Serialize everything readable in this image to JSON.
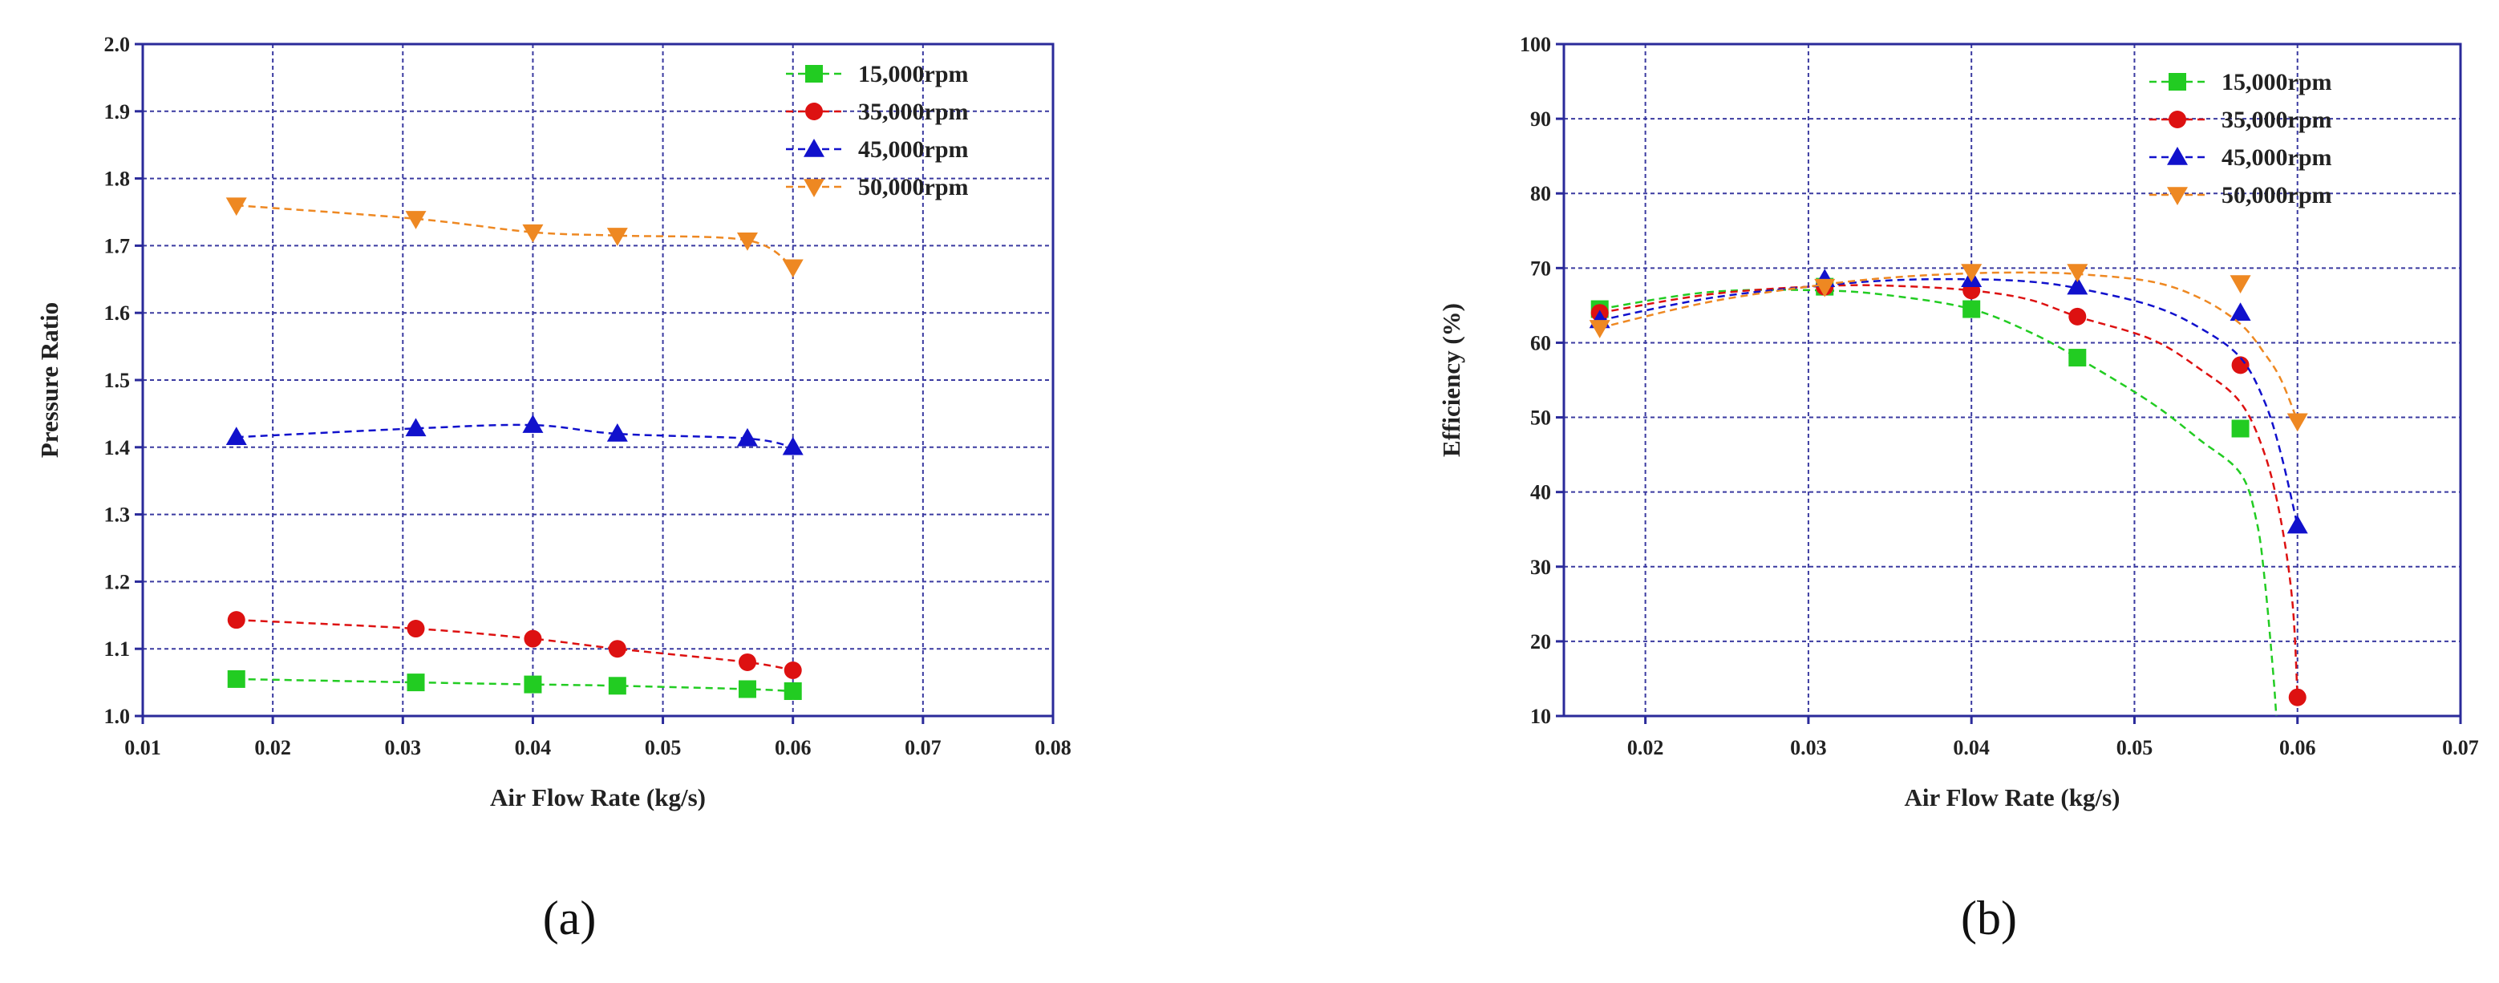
{
  "chart_data": [
    {
      "type": "line",
      "panel_label": "(a)",
      "title": "",
      "xlabel": "Air Flow Rate (kg/s)",
      "ylabel": "Pressure Ratio",
      "xlim": [
        0.01,
        0.08
      ],
      "ylim": [
        1.0,
        2.0
      ],
      "x_ticks": [
        0.01,
        0.02,
        0.03,
        0.04,
        0.05,
        0.06,
        0.07,
        0.08
      ],
      "y_ticks": [
        1.0,
        1.1,
        1.2,
        1.3,
        1.4,
        1.5,
        1.6,
        1.7,
        1.8,
        1.9,
        2.0
      ],
      "x_tick_labels": [
        "0.01",
        "0.02",
        "0.03",
        "0.04",
        "0.05",
        "0.06",
        "0.07",
        "0.08"
      ],
      "y_tick_labels": [
        "1.0",
        "1.1",
        "1.2",
        "1.3",
        "1.4",
        "1.5",
        "1.6",
        "1.7",
        "1.8",
        "1.9",
        "2.0"
      ],
      "grid": true,
      "legend_position": "top-right",
      "series": [
        {
          "name": "15,000rpm",
          "marker": "square",
          "x": [
            0.0172,
            0.031,
            0.04,
            0.0465,
            0.0565,
            0.06
          ],
          "y": [
            1.055,
            1.05,
            1.047,
            1.045,
            1.04,
            1.037
          ]
        },
        {
          "name": "35,000rpm",
          "marker": "circle",
          "x": [
            0.0172,
            0.031,
            0.04,
            0.0465,
            0.0565,
            0.06
          ],
          "y": [
            1.143,
            1.13,
            1.115,
            1.1,
            1.08,
            1.068
          ]
        },
        {
          "name": "45,000rpm",
          "marker": "triangle-up",
          "x": [
            0.0172,
            0.031,
            0.04,
            0.0465,
            0.0565,
            0.06
          ],
          "y": [
            1.415,
            1.428,
            1.433,
            1.42,
            1.413,
            1.4
          ]
        },
        {
          "name": "50,000rpm",
          "marker": "triangle-down",
          "x": [
            0.0172,
            0.031,
            0.04,
            0.0465,
            0.0565,
            0.06
          ],
          "y": [
            1.76,
            1.74,
            1.72,
            1.715,
            1.708,
            1.668
          ]
        }
      ]
    },
    {
      "type": "line",
      "panel_label": "(b)",
      "title": "",
      "xlabel": "Air Flow Rate (kg/s)",
      "ylabel": "Efficiency (%)",
      "xlim": [
        0.015,
        0.07
      ],
      "ylim": [
        10,
        100
      ],
      "x_ticks": [
        0.02,
        0.03,
        0.04,
        0.05,
        0.06,
        0.07
      ],
      "y_ticks": [
        10,
        20,
        30,
        40,
        50,
        60,
        70,
        80,
        90,
        100
      ],
      "x_tick_labels": [
        "0.02",
        "0.03",
        "0.04",
        "0.05",
        "0.06",
        "0.07"
      ],
      "y_tick_labels": [
        "10",
        "20",
        "30",
        "40",
        "50",
        "60",
        "70",
        "80",
        "90",
        "100"
      ],
      "grid": true,
      "legend_position": "top-right",
      "series": [
        {
          "name": "15,000rpm",
          "marker": "square",
          "x": [
            0.0172,
            0.031,
            0.04,
            0.0465,
            0.0565
          ],
          "y": [
            64.5,
            67.5,
            64.5,
            58.0,
            48.5
          ],
          "fit_x": [
            0.0172,
            0.024,
            0.031,
            0.0355,
            0.04,
            0.0435,
            0.0465,
            0.051,
            0.054,
            0.0565,
            0.0575,
            0.058,
            0.0585,
            0.0587
          ],
          "fit_y": [
            64.5,
            66.8,
            67.0,
            66.2,
            64.5,
            61.5,
            58.0,
            52.0,
            47.0,
            42.5,
            36.0,
            28.0,
            16.0,
            10.0
          ]
        },
        {
          "name": "35,000rpm",
          "marker": "circle",
          "x": [
            0.0172,
            0.031,
            0.04,
            0.0465,
            0.0565,
            0.06
          ],
          "y": [
            64.0,
            67.5,
            67.0,
            63.5,
            57.0,
            12.5
          ],
          "fit_x": [
            0.0172,
            0.024,
            0.031,
            0.0355,
            0.04,
            0.0435,
            0.0465,
            0.051,
            0.054,
            0.0565,
            0.058,
            0.059,
            0.0597,
            0.06
          ],
          "fit_y": [
            64.0,
            66.5,
            67.6,
            67.6,
            67.0,
            65.8,
            63.5,
            60.5,
            56.5,
            52.0,
            45.0,
            36.0,
            25.0,
            12.5
          ]
        },
        {
          "name": "45,000rpm",
          "marker": "triangle-up",
          "x": [
            0.0172,
            0.031,
            0.04,
            0.0465,
            0.0565,
            0.06
          ],
          "y": [
            63.0,
            68.5,
            68.5,
            67.5,
            64.0,
            35.5
          ],
          "fit_x": [
            0.0172,
            0.024,
            0.031,
            0.0355,
            0.04,
            0.0435,
            0.0465,
            0.051,
            0.054,
            0.0565,
            0.058,
            0.059,
            0.06
          ],
          "fit_y": [
            63.0,
            66.0,
            67.7,
            68.4,
            68.5,
            68.2,
            67.3,
            65.0,
            62.0,
            58.0,
            52.0,
            45.0,
            35.5
          ]
        },
        {
          "name": "50,000rpm",
          "marker": "triangle-down",
          "x": [
            0.0172,
            0.031,
            0.04,
            0.0465,
            0.0565,
            0.06
          ],
          "y": [
            62.0,
            67.5,
            69.5,
            69.5,
            68.0,
            49.5
          ],
          "fit_x": [
            0.0172,
            0.024,
            0.031,
            0.0355,
            0.04,
            0.0435,
            0.0465,
            0.051,
            0.054,
            0.0565,
            0.058,
            0.059,
            0.06
          ],
          "fit_y": [
            62.0,
            65.5,
            67.8,
            68.8,
            69.3,
            69.4,
            69.2,
            68.2,
            66.0,
            62.5,
            58.5,
            55.0,
            49.5
          ]
        }
      ]
    }
  ],
  "series_colors": [
    "#22cc22",
    "#dd1111",
    "#1111cc",
    "#ee8822"
  ],
  "axis_color": "#2a2a9a",
  "grid_color": "#3a3aa0"
}
